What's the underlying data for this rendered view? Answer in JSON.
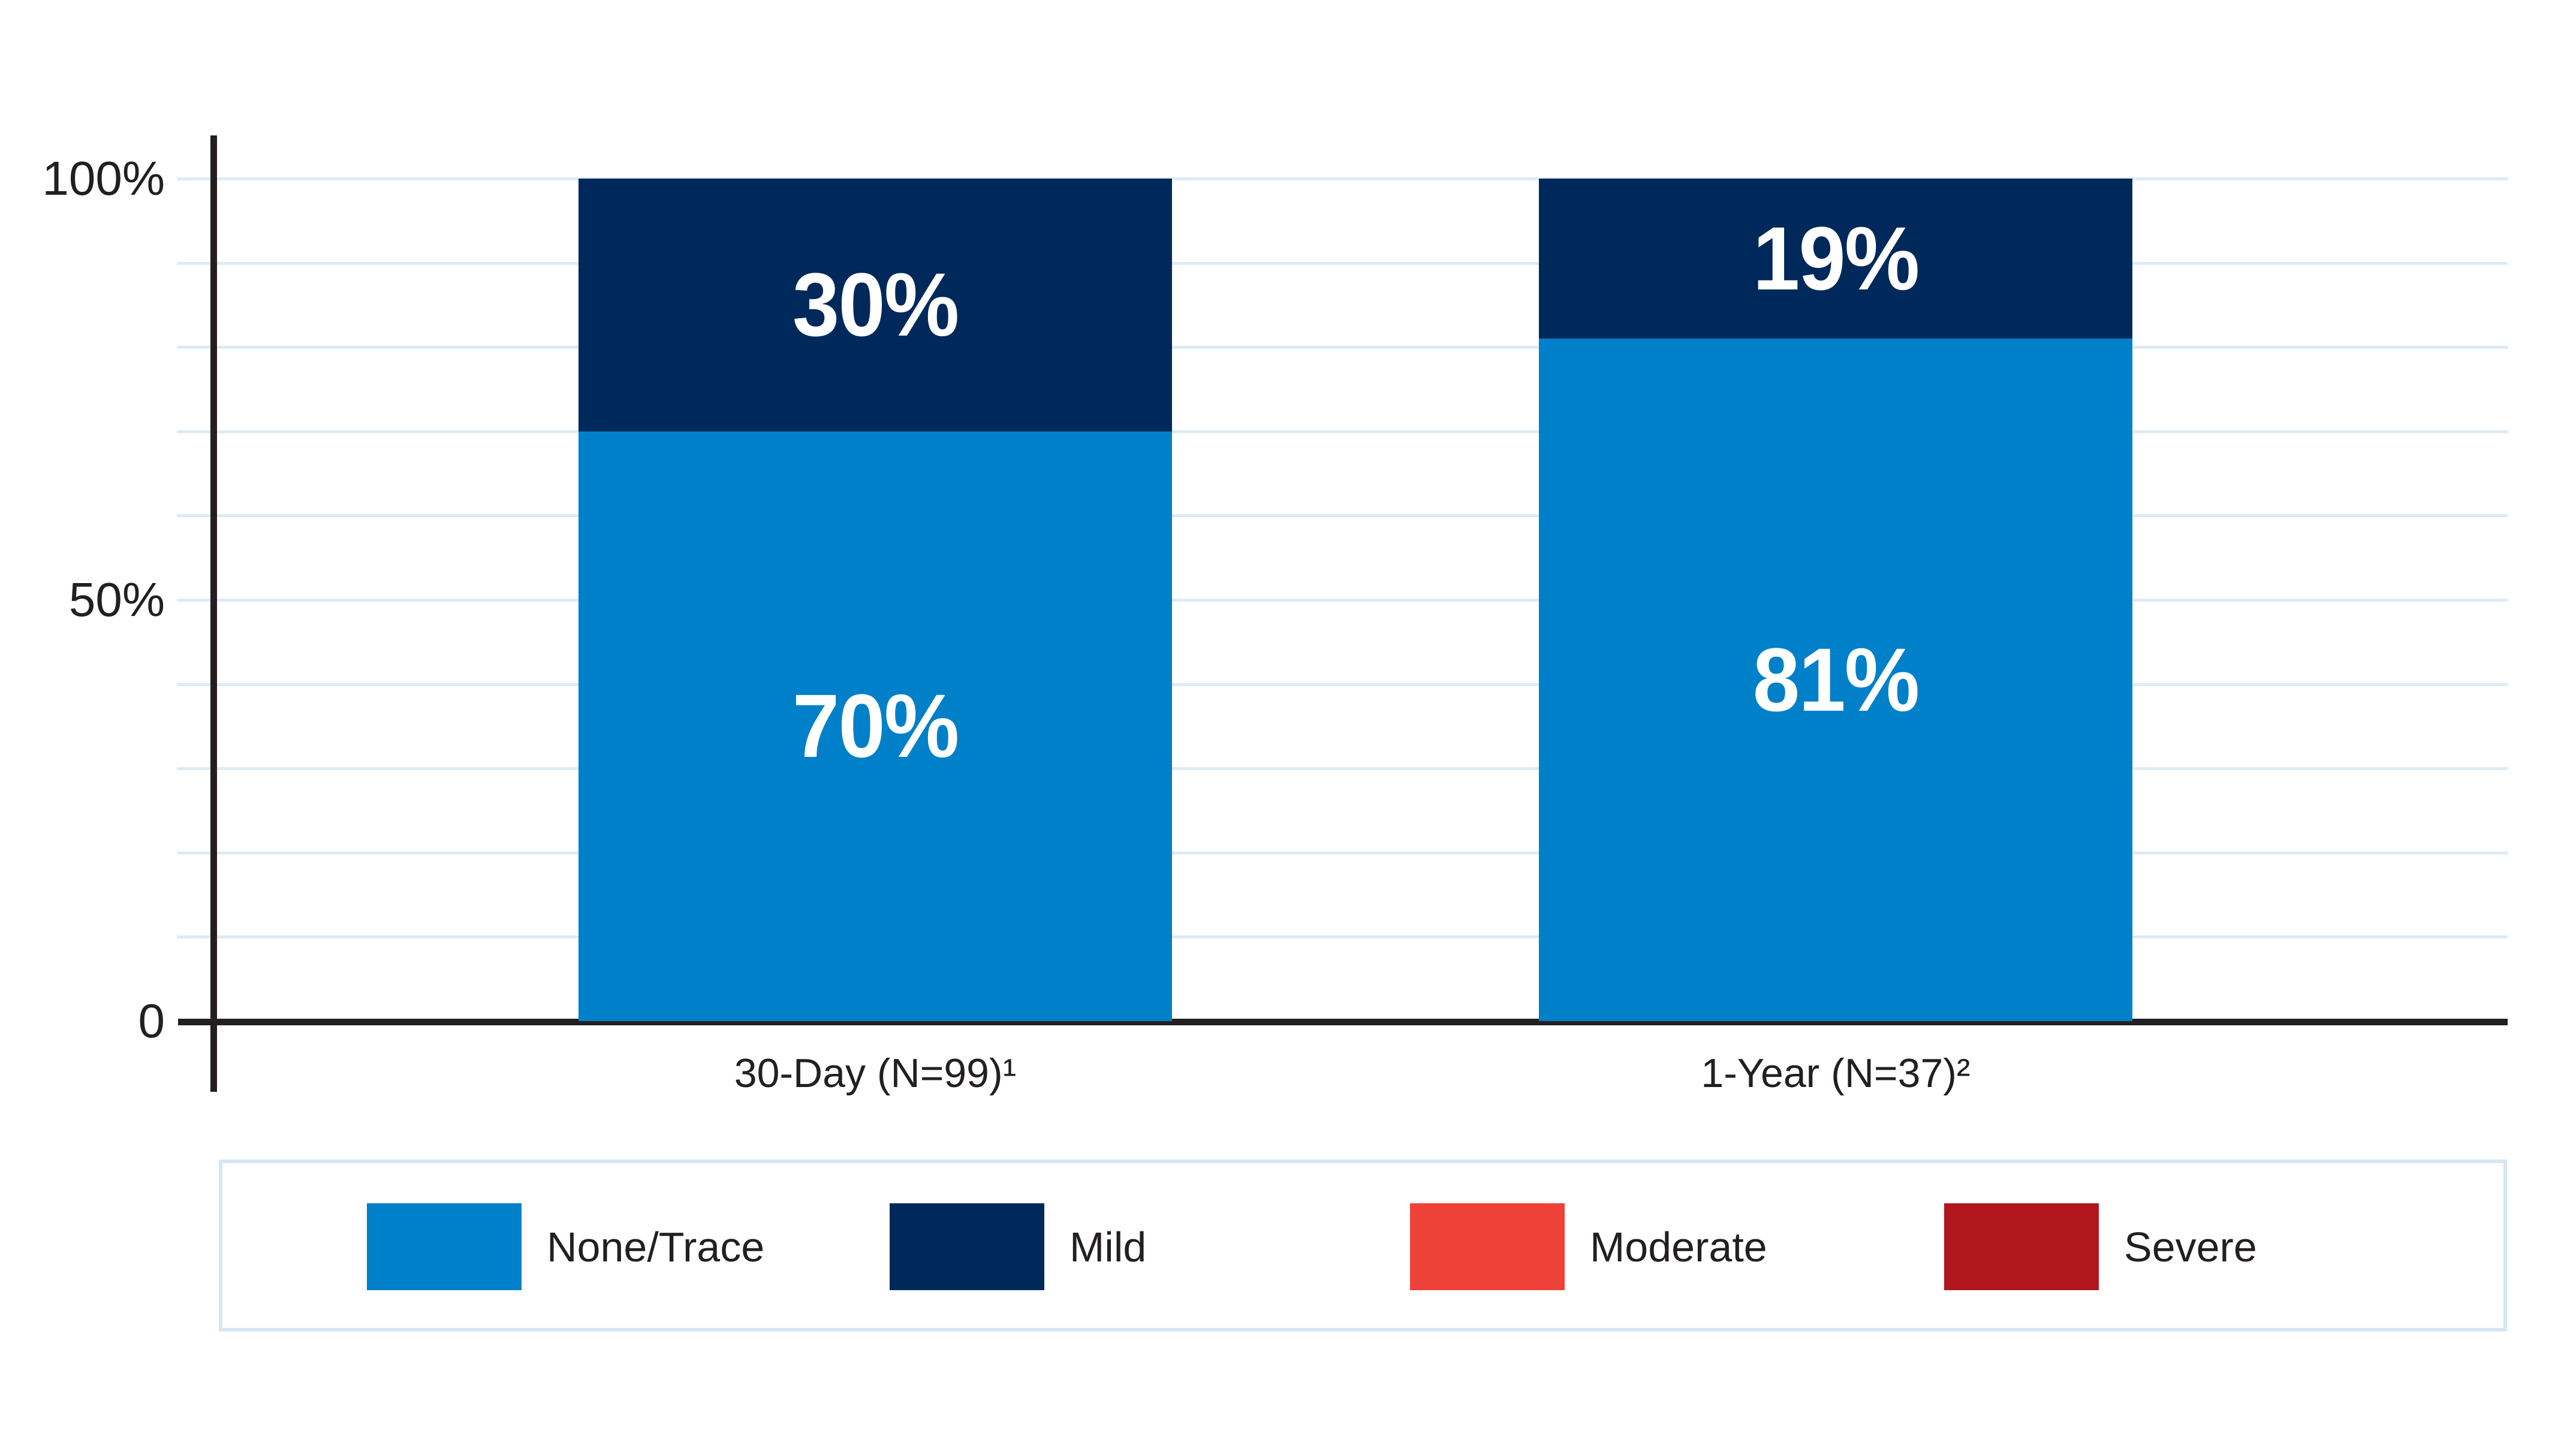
{
  "chart_data": {
    "type": "bar",
    "stacked": true,
    "title": "",
    "xlabel": "",
    "ylabel": "",
    "categories": [
      "30-Day (N=99)¹",
      "1-Year (N=37)²"
    ],
    "series": [
      {
        "name": "None/Trace",
        "color": "#0080C9",
        "values": [
          70,
          81
        ],
        "labels": [
          "70%",
          "81%"
        ]
      },
      {
        "name": "Mild",
        "color": "#00295B",
        "values": [
          30,
          19
        ],
        "labels": [
          "30%",
          "19%"
        ]
      }
    ],
    "ylim": [
      0,
      100
    ],
    "yticks": [
      {
        "label": "100%",
        "value": 100
      },
      {
        "label": "50%",
        "value": 50
      },
      {
        "label": "0",
        "value": 0
      }
    ],
    "gridline_step": 10,
    "grid": true,
    "legend_position": "bottom"
  },
  "legend": {
    "items": [
      {
        "label": "None/Trace",
        "color": "#0080C9"
      },
      {
        "label": "Mild",
        "color": "#00295B"
      },
      {
        "label": "Moderate",
        "color": "#EE4137"
      },
      {
        "label": "Severe",
        "color": "#B1161E"
      }
    ]
  },
  "colors": {
    "axis": "#231F20",
    "gridline": "#DEEBF6",
    "legend_border": "#D5E6F4",
    "bar_label_text": "#FFFFFF",
    "background": "#FFFFFF"
  }
}
